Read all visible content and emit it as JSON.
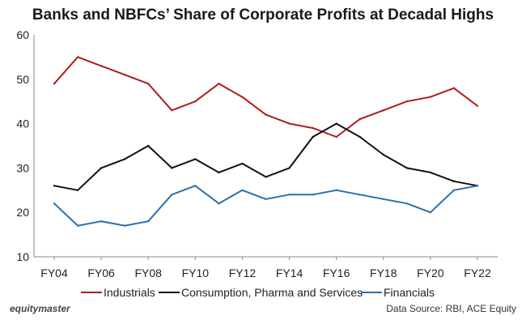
{
  "chart_data": {
    "type": "line",
    "title": "Banks and NBFCs’ Share of Corporate Profits at Decadal Highs",
    "xlabel": "",
    "ylabel": "",
    "ylim": [
      10,
      60
    ],
    "yticks": [
      10,
      20,
      30,
      40,
      50,
      60
    ],
    "grid": false,
    "categories": [
      "FY04",
      "FY05",
      "FY06",
      "FY07",
      "FY08",
      "FY09",
      "FY10",
      "FY11",
      "FY12",
      "FY13",
      "FY14",
      "FY15",
      "FY16",
      "FY17",
      "FY18",
      "FY19",
      "FY20",
      "FY21",
      "FY22"
    ],
    "tick_labels": [
      "FY04",
      "FY06",
      "FY08",
      "FY10",
      "FY12",
      "FY14",
      "FY16",
      "FY18",
      "FY20",
      "FY22"
    ],
    "legend_position": "bottom",
    "series": [
      {
        "name": "Industrials",
        "color": "#b01c1c",
        "values": [
          49,
          55,
          53,
          51,
          49,
          43,
          45,
          49,
          46,
          42,
          40,
          39,
          37,
          41,
          43,
          45,
          46,
          48,
          44
        ]
      },
      {
        "name": "Consumption, Pharma and Services",
        "color": "#111111",
        "values": [
          26,
          25,
          30,
          32,
          35,
          30,
          32,
          29,
          31,
          28,
          30,
          37,
          40,
          37,
          33,
          30,
          29,
          27,
          26
        ]
      },
      {
        "name": "Financials",
        "color": "#2e6fa7",
        "values": [
          22,
          17,
          18,
          17,
          18,
          24,
          26,
          22,
          25,
          23,
          24,
          24,
          25,
          24,
          23,
          22,
          20,
          25,
          26
        ]
      }
    ]
  },
  "footer": {
    "brand": "equitymaster",
    "source": "Data Source: RBI, ACE Equity"
  }
}
